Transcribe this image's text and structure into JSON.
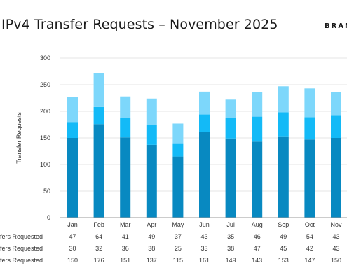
{
  "header": {
    "title": "IPv4 Transfer Requests – November 2025",
    "brand": "BRAN"
  },
  "colors": {
    "bottom": "#0889c1",
    "middle": "#13baf7",
    "top": "#7dd7fb",
    "gridline": "#e6e6e6",
    "axis": "#999999"
  },
  "chart_data": {
    "type": "bar",
    "stacked": true,
    "categories": [
      "Jan",
      "Feb",
      "Mar",
      "Apr",
      "May",
      "Jun",
      "Jul",
      "Aug",
      "Sep",
      "Oct",
      "Nov"
    ],
    "series": [
      {
        "name": "fers Requested",
        "values": [
          150,
          176,
          151,
          137,
          115,
          161,
          149,
          143,
          153,
          147,
          150
        ],
        "color_key": "bottom"
      },
      {
        "name": "fers Requested",
        "values": [
          30,
          32,
          36,
          38,
          25,
          33,
          38,
          47,
          45,
          42,
          43
        ],
        "color_key": "middle"
      },
      {
        "name": "fers Requested",
        "values": [
          47,
          64,
          41,
          49,
          37,
          43,
          35,
          46,
          49,
          54,
          43
        ],
        "color_key": "top"
      }
    ],
    "table_rows": [
      {
        "label": "fers Requested",
        "values": [
          47,
          64,
          41,
          49,
          37,
          43,
          35,
          46,
          49,
          54,
          43
        ]
      },
      {
        "label": "fers Requested",
        "values": [
          30,
          32,
          36,
          38,
          25,
          33,
          38,
          47,
          45,
          42,
          43
        ]
      },
      {
        "label": "fers Requested",
        "values": [
          150,
          176,
          151,
          137,
          115,
          161,
          149,
          143,
          153,
          147,
          150
        ]
      }
    ],
    "ylabel": "Transfer Requests",
    "ylim": [
      0,
      300
    ],
    "yticks": [
      0,
      50,
      100,
      150,
      200,
      250,
      300
    ],
    "grid": true
  }
}
